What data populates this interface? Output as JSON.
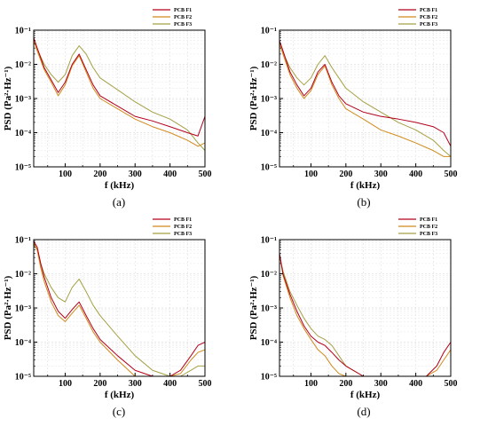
{
  "chart_data": [
    {
      "type": "line",
      "caption": "(a)",
      "xlabel": "f (kHz)",
      "ylabel": "PSD (Pa²·Hz⁻¹)",
      "xlim": [
        10,
        500
      ],
      "ylim": [
        1e-05,
        0.1
      ],
      "yscale": "log",
      "grid": true,
      "legend_position": "top-right",
      "xticks": [
        {
          "value": 100,
          "label": "100"
        },
        {
          "value": 200,
          "label": "200"
        },
        {
          "value": 300,
          "label": "300"
        },
        {
          "value": 400,
          "label": "400"
        },
        {
          "value": 500,
          "label": "500"
        }
      ],
      "yticks": [
        {
          "value": 1e-05,
          "label": "10⁻⁵"
        },
        {
          "value": 0.0001,
          "label": "10⁻⁴"
        },
        {
          "value": 0.001,
          "label": "10⁻³"
        },
        {
          "value": 0.01,
          "label": "10⁻²"
        },
        {
          "value": 0.1,
          "label": "10⁻¹"
        }
      ],
      "series": [
        {
          "name": "PCB F1",
          "color": "#b3001b",
          "x": [
            10,
            20,
            40,
            60,
            80,
            100,
            120,
            140,
            160,
            180,
            200,
            250,
            300,
            350,
            400,
            450,
            480,
            500
          ],
          "y": [
            0.06,
            0.03,
            0.008,
            0.0035,
            0.0015,
            0.003,
            0.01,
            0.02,
            0.007,
            0.0025,
            0.0012,
            0.0006,
            0.0003,
            0.00022,
            0.00015,
            0.0001,
            8e-05,
            0.0003
          ]
        },
        {
          "name": "PCB F2",
          "color": "#d08a1c",
          "x": [
            10,
            20,
            40,
            60,
            80,
            100,
            120,
            140,
            160,
            180,
            200,
            250,
            300,
            350,
            400,
            450,
            480,
            500
          ],
          "y": [
            0.05,
            0.025,
            0.007,
            0.003,
            0.0012,
            0.0025,
            0.009,
            0.018,
            0.006,
            0.002,
            0.001,
            0.0005,
            0.00025,
            0.00015,
            0.0001,
            6e-05,
            4e-05,
            5e-05
          ]
        },
        {
          "name": "PCB F3",
          "color": "#a4a043",
          "x": [
            10,
            20,
            40,
            60,
            80,
            100,
            120,
            140,
            160,
            180,
            200,
            250,
            300,
            350,
            400,
            450,
            480,
            500
          ],
          "y": [
            0.05,
            0.028,
            0.01,
            0.005,
            0.003,
            0.005,
            0.018,
            0.035,
            0.02,
            0.008,
            0.004,
            0.0018,
            0.0008,
            0.0004,
            0.00025,
            0.00012,
            5e-05,
            3e-05
          ]
        }
      ]
    },
    {
      "type": "line",
      "caption": "(b)",
      "xlabel": "f (kHz)",
      "ylabel": "PSD (Pa²·Hz⁻¹)",
      "xlim": [
        10,
        500
      ],
      "ylim": [
        1e-05,
        0.1
      ],
      "yscale": "log",
      "grid": true,
      "legend_position": "top-right",
      "xticks": [
        {
          "value": 100,
          "label": "100"
        },
        {
          "value": 200,
          "label": "200"
        },
        {
          "value": 300,
          "label": "300"
        },
        {
          "value": 400,
          "label": "400"
        },
        {
          "value": 500,
          "label": "500"
        }
      ],
      "yticks": [
        {
          "value": 1e-05,
          "label": "10⁻⁵"
        },
        {
          "value": 0.0001,
          "label": "10⁻⁴"
        },
        {
          "value": 0.001,
          "label": "10⁻³"
        },
        {
          "value": 0.01,
          "label": "10⁻²"
        },
        {
          "value": 0.1,
          "label": "10⁻¹"
        }
      ],
      "series": [
        {
          "name": "PCB F1",
          "color": "#b3001b",
          "x": [
            10,
            20,
            40,
            60,
            80,
            100,
            120,
            140,
            160,
            180,
            200,
            250,
            300,
            350,
            400,
            450,
            480,
            500
          ],
          "y": [
            0.05,
            0.025,
            0.006,
            0.0025,
            0.0012,
            0.002,
            0.006,
            0.01,
            0.003,
            0.0012,
            0.0007,
            0.0004,
            0.0003,
            0.00025,
            0.0002,
            0.00015,
            0.0001,
            4e-05
          ]
        },
        {
          "name": "PCB F2",
          "color": "#d08a1c",
          "x": [
            10,
            20,
            40,
            60,
            80,
            100,
            120,
            140,
            160,
            180,
            200,
            250,
            300,
            350,
            400,
            450,
            480,
            500
          ],
          "y": [
            0.04,
            0.02,
            0.005,
            0.002,
            0.001,
            0.0017,
            0.005,
            0.009,
            0.0025,
            0.001,
            0.0005,
            0.00025,
            0.00012,
            8e-05,
            5e-05,
            3e-05,
            2e-05,
            2e-05
          ]
        },
        {
          "name": "PCB F3",
          "color": "#a4a043",
          "x": [
            10,
            20,
            40,
            60,
            80,
            100,
            120,
            140,
            160,
            180,
            200,
            250,
            300,
            350,
            400,
            450,
            480,
            500
          ],
          "y": [
            0.04,
            0.022,
            0.008,
            0.004,
            0.0025,
            0.004,
            0.01,
            0.018,
            0.008,
            0.004,
            0.002,
            0.0008,
            0.0004,
            0.0002,
            0.00012,
            6e-05,
            3e-05,
            2e-05
          ]
        }
      ]
    },
    {
      "type": "line",
      "caption": "(c)",
      "xlabel": "f (kHz)",
      "ylabel": "PSD (Pa²·Hz⁻¹)",
      "xlim": [
        10,
        500
      ],
      "ylim": [
        1e-05,
        0.1
      ],
      "yscale": "log",
      "grid": true,
      "legend_position": "top-right",
      "xticks": [
        {
          "value": 100,
          "label": "100"
        },
        {
          "value": 200,
          "label": "200"
        },
        {
          "value": 300,
          "label": "300"
        },
        {
          "value": 400,
          "label": "400"
        },
        {
          "value": 500,
          "label": "500"
        }
      ],
      "yticks": [
        {
          "value": 1e-05,
          "label": "10⁻⁵"
        },
        {
          "value": 0.0001,
          "label": "10⁻⁴"
        },
        {
          "value": 0.001,
          "label": "10⁻³"
        },
        {
          "value": 0.01,
          "label": "10⁻²"
        },
        {
          "value": 0.1,
          "label": "10⁻¹"
        }
      ],
      "series": [
        {
          "name": "PCB F1",
          "color": "#b3001b",
          "x": [
            10,
            20,
            30,
            40,
            60,
            80,
            100,
            120,
            140,
            160,
            180,
            200,
            250,
            300,
            350,
            400,
            430,
            460,
            480,
            500
          ],
          "y": [
            0.09,
            0.06,
            0.02,
            0.008,
            0.002,
            0.0008,
            0.0005,
            0.0009,
            0.0015,
            0.0006,
            0.00025,
            0.00012,
            4e-05,
            1.5e-05,
            1e-05,
            1e-05,
            1.5e-05,
            4e-05,
            8e-05,
            0.0001
          ]
        },
        {
          "name": "PCB F2",
          "color": "#d08a1c",
          "x": [
            10,
            20,
            30,
            40,
            60,
            80,
            100,
            120,
            140,
            160,
            180,
            200,
            250,
            300,
            350,
            400,
            430,
            460,
            480,
            500
          ],
          "y": [
            0.08,
            0.05,
            0.015,
            0.006,
            0.0015,
            0.0006,
            0.0004,
            0.0007,
            0.0012,
            0.0005,
            0.0002,
            0.0001,
            3e-05,
            1e-05,
            1e-05,
            1e-05,
            1.2e-05,
            3e-05,
            5e-05,
            6e-05
          ]
        },
        {
          "name": "PCB F3",
          "color": "#a4a043",
          "x": [
            10,
            20,
            30,
            40,
            60,
            80,
            100,
            120,
            140,
            160,
            180,
            200,
            250,
            300,
            350,
            400,
            430,
            460,
            480,
            500
          ],
          "y": [
            0.07,
            0.05,
            0.02,
            0.01,
            0.004,
            0.002,
            0.0015,
            0.004,
            0.007,
            0.003,
            0.0012,
            0.0006,
            0.00015,
            4e-05,
            1.5e-05,
            1e-05,
            1e-05,
            1.5e-05,
            2e-05,
            2e-05
          ]
        }
      ]
    },
    {
      "type": "line",
      "caption": "(d)",
      "xlabel": "f (kHz)",
      "ylabel": "PSD (Pa²·Hz⁻¹)",
      "xlim": [
        10,
        500
      ],
      "ylim": [
        1e-05,
        0.1
      ],
      "yscale": "log",
      "grid": true,
      "legend_position": "top-right",
      "xticks": [
        {
          "value": 100,
          "label": "100"
        },
        {
          "value": 200,
          "label": "200"
        },
        {
          "value": 300,
          "label": "300"
        },
        {
          "value": 400,
          "label": "400"
        },
        {
          "value": 500,
          "label": "500"
        }
      ],
      "yticks": [
        {
          "value": 1e-05,
          "label": "10⁻⁵"
        },
        {
          "value": 0.0001,
          "label": "10⁻⁴"
        },
        {
          "value": 0.001,
          "label": "10⁻³"
        },
        {
          "value": 0.01,
          "label": "10⁻²"
        },
        {
          "value": 0.1,
          "label": "10⁻¹"
        }
      ],
      "series": [
        {
          "name": "PCB F1",
          "color": "#b3001b",
          "x": [
            10,
            20,
            40,
            60,
            80,
            100,
            120,
            140,
            160,
            180,
            200,
            250,
            300,
            350,
            400,
            430,
            460,
            480,
            500
          ],
          "y": [
            0.04,
            0.01,
            0.0025,
            0.0008,
            0.0003,
            0.00015,
            0.0001,
            8e-05,
            5e-05,
            3e-05,
            2e-05,
            1e-05,
            1e-05,
            1e-05,
            1e-05,
            1e-05,
            2e-05,
            5e-05,
            0.0001
          ]
        },
        {
          "name": "PCB F2",
          "color": "#d08a1c",
          "x": [
            10,
            20,
            40,
            60,
            80,
            100,
            120,
            140,
            160,
            180,
            200,
            250,
            300,
            350,
            400,
            430,
            460,
            480,
            500
          ],
          "y": [
            0.04,
            0.009,
            0.002,
            0.0006,
            0.00025,
            0.00012,
            6e-05,
            4e-05,
            2e-05,
            1.2e-05,
            1e-05,
            1e-05,
            1e-05,
            1e-05,
            1e-05,
            1e-05,
            1.5e-05,
            3e-05,
            6e-05
          ]
        },
        {
          "name": "PCB F3",
          "color": "#a4a043",
          "x": [
            10,
            20,
            40,
            60,
            80,
            100,
            120,
            140,
            160,
            180,
            200,
            250,
            300,
            350,
            400,
            430,
            460,
            480,
            500
          ],
          "y": [
            0.035,
            0.012,
            0.003,
            0.0012,
            0.0005,
            0.00025,
            0.00015,
            0.00012,
            8e-05,
            4e-05,
            2e-05,
            1e-05,
            1e-05,
            1e-05,
            1e-05,
            1e-05,
            1e-05,
            1e-05,
            1e-05
          ]
        }
      ]
    }
  ]
}
